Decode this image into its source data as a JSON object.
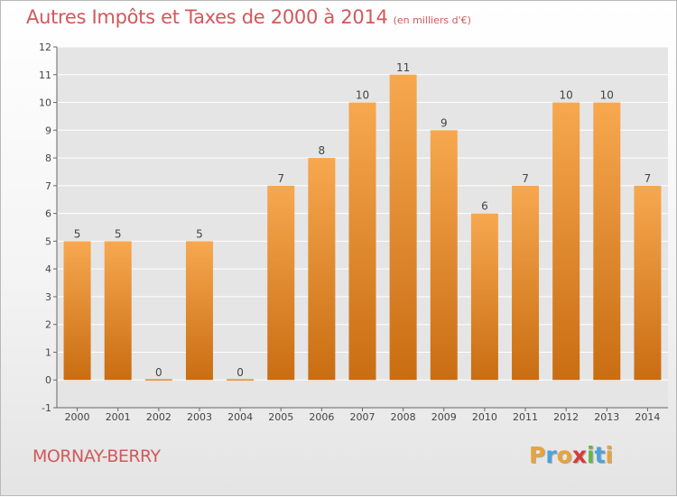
{
  "header": {
    "title": "Autres Impôts et Taxes de 2000 à 2014",
    "subtitle": "(en milliers d'€)"
  },
  "footer": {
    "location": "MORNAY-BERRY",
    "logo": "Proxiti"
  },
  "colors": {
    "bar_light": "#f7a84f",
    "bar_dark": "#c96d12",
    "title": "#d2585b",
    "plot_bg": "#e5e5e5",
    "grid": "#ffffff"
  },
  "chart_data": {
    "type": "bar",
    "categories": [
      "2000",
      "2001",
      "2002",
      "2003",
      "2004",
      "2005",
      "2006",
      "2007",
      "2008",
      "2009",
      "2010",
      "2011",
      "2012",
      "2013",
      "2014"
    ],
    "values": [
      5,
      5,
      0,
      5,
      0,
      7,
      8,
      10,
      11,
      9,
      6,
      7,
      10,
      10,
      7
    ],
    "ylim": [
      -1,
      12
    ],
    "yticks": [
      -1,
      0,
      1,
      2,
      3,
      4,
      5,
      6,
      7,
      8,
      9,
      10,
      11,
      12
    ],
    "ytick_labels": [
      "-1",
      "0",
      "1",
      "2",
      "3",
      "4",
      "5",
      "6",
      "7",
      "8",
      "9",
      "10",
      "11",
      "12"
    ],
    "grid": true,
    "legend": "none"
  }
}
